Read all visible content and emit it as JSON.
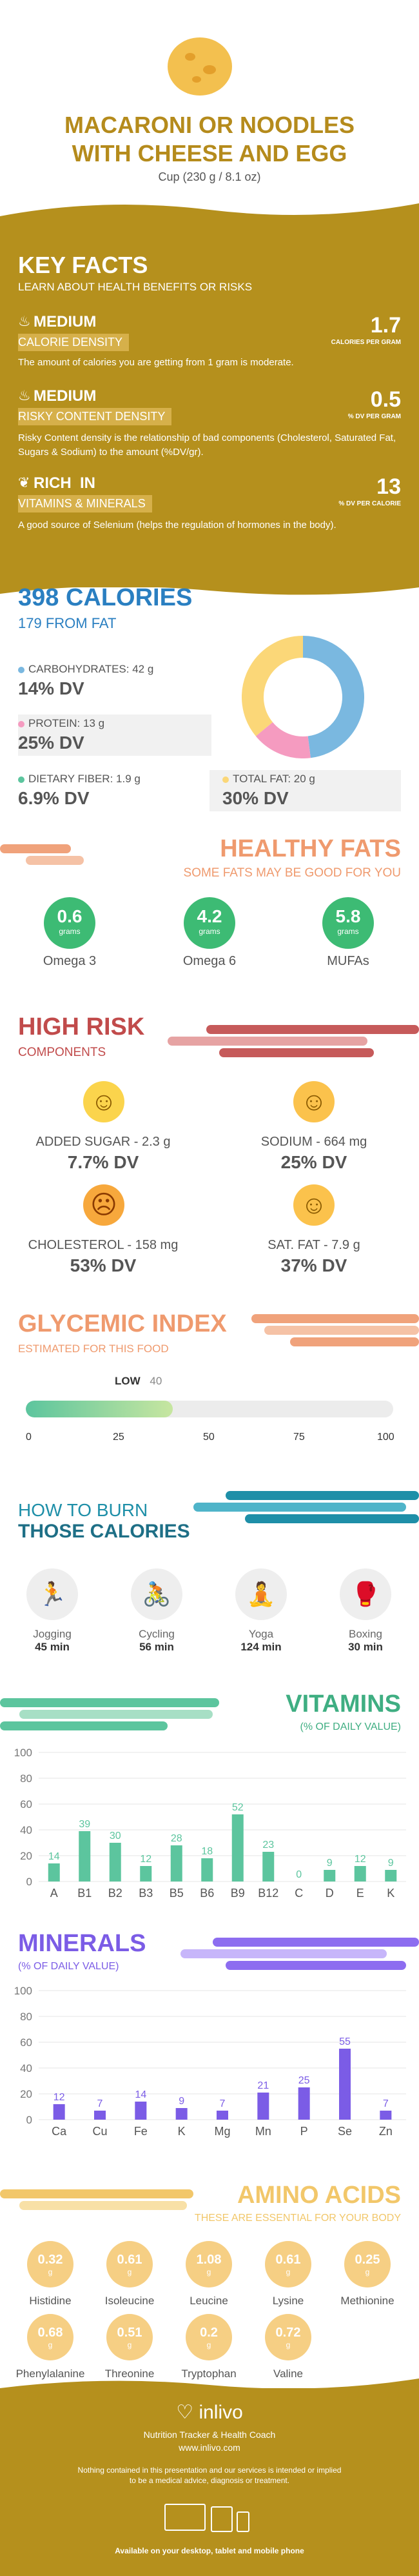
{
  "header": {
    "title_line1": "MACARONI OR NOODLES",
    "title_line2": "WITH CHEESE AND EGG",
    "serving": "Cup (230 g / 8.1 oz)"
  },
  "key_facts": {
    "title": "KEY FACTS",
    "subtitle": "LEARN ABOUT HEALTH BENEFITS OR RISKS",
    "items": [
      {
        "level": "MEDIUM",
        "label": "CALORIE DENSITY",
        "value": "1.7",
        "unit": "CALORIES PER GRAM",
        "desc": "The amount of calories you are getting from 1 gram is moderate."
      },
      {
        "level": "MEDIUM",
        "label": "RISKY CONTENT DENSITY",
        "value": "0.5",
        "unit": "% DV PER GRAM",
        "desc": "Risky Content density is the relationship of bad components (Cholesterol, Saturated Fat, Sugars & Sodium) to the amount (%DV/gr)."
      },
      {
        "level": "RICH  IN",
        "label": "VITAMINS & MINERALS",
        "value": "13",
        "unit": "% DV PER CALORIE",
        "desc": "A good source of Selenium (helps the regulation of hormones in the body)."
      }
    ]
  },
  "calories": {
    "title": "398 CALORIES",
    "from_fat": "179 FROM FAT",
    "carbs_label": "CARBOHYDRATES: 42 g",
    "carbs_dv": "14% DV",
    "protein_label": "PROTEIN: 13 g",
    "protein_dv": "25% DV",
    "fiber_label": "DIETARY FIBER: 1.9 g",
    "fiber_dv": "6.9% DV",
    "fat_label": "TOTAL FAT: 20 g",
    "fat_dv": "30% DV",
    "colors": {
      "carbs": "#7ab8e0",
      "protein": "#f59bc0",
      "fat": "#fbd778",
      "fiber": "#5cc59e"
    },
    "donut_fractions": {
      "carbs": 0.48,
      "protein": 0.16,
      "fat": 0.36
    }
  },
  "healthy_fats": {
    "title": "HEALTHY FATS",
    "subtitle": "SOME FATS MAY BE GOOD FOR YOU",
    "unit": "grams",
    "items": [
      {
        "value": "0.6",
        "label": "Omega 3"
      },
      {
        "value": "4.2",
        "label": "Omega 6"
      },
      {
        "value": "5.8",
        "label": "MUFAs"
      }
    ]
  },
  "high_risk": {
    "title": "HIGH RISK",
    "subtitle": "COMPONENTS",
    "items": [
      {
        "label": "ADDED SUGAR - 2.3 g",
        "dv": "7.7% DV",
        "face": "☺",
        "color": "#fbd44c"
      },
      {
        "label": "SODIUM - 664 mg",
        "dv": "25% DV",
        "face": "☺",
        "color": "#fbc24c"
      },
      {
        "label": "CHOLESTEROL - 158 mg",
        "dv": "53% DV",
        "face": "☹",
        "color": "#f7a83c"
      },
      {
        "label": "SAT. FAT - 7.9 g",
        "dv": "37% DV",
        "face": "☺",
        "color": "#fbc24c"
      }
    ]
  },
  "glycemic": {
    "title": "GLYCEMIC INDEX",
    "subtitle": "ESTIMATED FOR THIS FOOD",
    "level": "LOW",
    "value": "40",
    "fraction": 0.4,
    "ticks": [
      "0",
      "25",
      "50",
      "75",
      "100"
    ]
  },
  "burn": {
    "title1": "HOW TO BURN",
    "title2": "THOSE CALORIES",
    "items": [
      {
        "label": "Jogging",
        "value": "45 min",
        "icon": "🏃"
      },
      {
        "label": "Cycling",
        "value": "56 min",
        "icon": "🚴"
      },
      {
        "label": "Yoga",
        "value": "124 min",
        "icon": "🧘"
      },
      {
        "label": "Boxing",
        "value": "30 min",
        "icon": "🥊"
      }
    ]
  },
  "vitamins": {
    "title": "VITAMINS",
    "subtitle": "(% OF DAILY VALUE)",
    "color": "#5cc59e"
  },
  "minerals": {
    "title": "MINERALS",
    "subtitle": "(% OF DAILY VALUE)",
    "color": "#7b5ce6"
  },
  "chart_data": [
    {
      "type": "bar",
      "categories": [
        "A",
        "B1",
        "B2",
        "B3",
        "B5",
        "B6",
        "B9",
        "B12",
        "C",
        "D",
        "E",
        "K"
      ],
      "values": [
        14,
        39,
        30,
        12,
        28,
        18,
        52,
        23,
        0,
        9,
        12,
        9
      ],
      "ylim": [
        0,
        100
      ],
      "yticks": [
        "0",
        "20",
        "40",
        "60",
        "80",
        "100"
      ]
    },
    {
      "type": "bar",
      "categories": [
        "Ca",
        "Cu",
        "Fe",
        "K",
        "Mg",
        "Mn",
        "P",
        "Se",
        "Zn"
      ],
      "values": [
        12,
        7,
        14,
        9,
        7,
        21,
        25,
        55,
        7
      ],
      "ylim": [
        0,
        100
      ],
      "yticks": [
        "0",
        "20",
        "40",
        "60",
        "80",
        "100"
      ]
    }
  ],
  "amino": {
    "title": "AMINO ACIDS",
    "subtitle": "THESE ARE ESSENTIAL FOR YOUR BODY",
    "unit": "g",
    "items": [
      {
        "value": "0.32",
        "label": "Histidine"
      },
      {
        "value": "0.61",
        "label": "Isoleucine"
      },
      {
        "value": "1.08",
        "label": "Leucine"
      },
      {
        "value": "0.61",
        "label": "Lysine"
      },
      {
        "value": "0.25",
        "label": "Methionine"
      },
      {
        "value": "0.68",
        "label": "Phenylalanine"
      },
      {
        "value": "0.51",
        "label": "Threonine"
      },
      {
        "value": "0.2",
        "label": "Tryptophan"
      },
      {
        "value": "0.72",
        "label": "Valine"
      }
    ]
  },
  "footer": {
    "brand": "inlivo",
    "tagline": "Nutrition Tracker & Health Coach",
    "url": "www.inlivo.com",
    "disclaimer1": "Nothing contained in this presentation and our services is intended or implied",
    "disclaimer2": "to be a medical advice, diagnosis or treatment.",
    "availability": "Available on your desktop, tablet and mobile phone"
  }
}
